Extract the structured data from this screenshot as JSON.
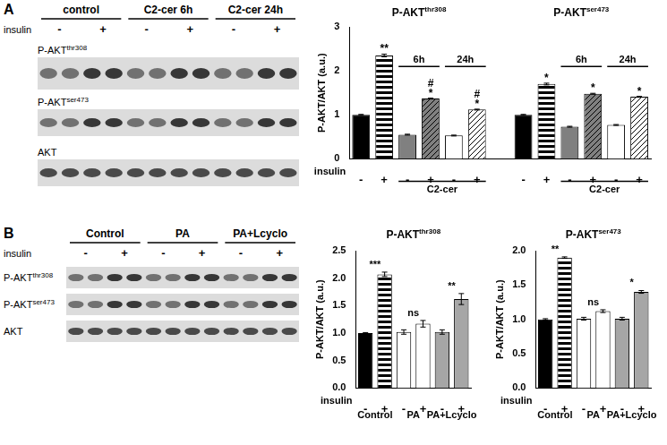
{
  "panels": [
    {
      "label": "A",
      "blot": {
        "conditions": [
          "control",
          "C2-cer 6h",
          "C2-cer 24h"
        ],
        "insulin_label": "insulin",
        "insulin": [
          "-",
          "+"
        ],
        "rows": [
          {
            "base": "P-AKT",
            "sup": "thr308"
          },
          {
            "base": "P-AKT",
            "sup": "ser473"
          },
          {
            "base": "AKT"
          }
        ]
      }
    },
    {
      "label": "B",
      "blot": {
        "conditions": [
          "Control",
          "PA",
          "PA+Lcyclo"
        ],
        "insulin_label": "insulin",
        "insulin": [
          "-",
          "+"
        ],
        "rows": [
          {
            "base": "P-AKT",
            "sup": "thr308"
          },
          {
            "base": "P-AKT",
            "sup": "ser473"
          },
          {
            "base": "AKT"
          }
        ]
      }
    }
  ],
  "chart_data": [
    {
      "type": "bar",
      "y_label": "P-AKT/AKT (a.u.)",
      "x_label": "insulin",
      "categories": [
        "-",
        "+",
        "-",
        "+",
        "-",
        "+",
        null,
        "-",
        "+",
        "-",
        "+",
        "-",
        "+"
      ],
      "values": [
        1,
        2.35,
        0.55,
        1.37,
        0.53,
        1.12,
        null,
        1,
        1.7,
        0.73,
        1.48,
        0.77,
        1.41
      ],
      "errors": [
        0.01,
        0.03,
        0.01,
        0.01,
        0.01,
        0.01,
        null,
        0.01,
        0.02,
        0.01,
        0.01,
        0.01,
        0.01
      ],
      "colors": [
        "#000000",
        "#000000",
        "#808080",
        "#808080",
        "#ffffff",
        "#ffffff",
        null,
        "#000000",
        "#000000",
        "#808080",
        "#808080",
        "#ffffff",
        "#ffffff"
      ],
      "significance": [
        null,
        [
          "**"
        ],
        null,
        [
          "#",
          "*"
        ],
        null,
        [
          "#",
          "*"
        ],
        null,
        null,
        [
          "*"
        ],
        null,
        [
          "*"
        ],
        null,
        [
          "*"
        ]
      ],
      "group_titles": [
        {
          "text": {
            "base": "P-AKT",
            "sup": "thr308"
          },
          "from": 0,
          "to": 5
        },
        {
          "text": {
            "base": "P-AKT",
            "sup": "ser473"
          },
          "from": 7,
          "to": 12
        }
      ],
      "brackets": [
        {
          "label": "6h",
          "from": 2,
          "to": 3
        },
        {
          "label": "24h",
          "from": 4,
          "to": 5
        },
        {
          "label": "6h",
          "from": 9,
          "to": 10
        },
        {
          "label": "24h",
          "from": 11,
          "to": 12
        }
      ],
      "groups": [
        {
          "label": "C2-cer",
          "from": 2,
          "to": 5
        },
        {
          "label": "C2-cer",
          "from": 9,
          "to": 12
        }
      ],
      "ylim": [
        0,
        3
      ],
      "yticks": [
        0,
        1,
        2,
        3
      ],
      "grid": false
    },
    {
      "type": "bar",
      "title": {
        "base": "P-AKT",
        "sup": "thr308"
      },
      "y_label": "P-AKT/AKT (a.u.)",
      "x_label": "insulin",
      "categories": [
        "-",
        "+",
        "-",
        "+",
        "-",
        "+"
      ],
      "values": [
        1,
        2.07,
        1.02,
        1.17,
        1.02,
        1.62
      ],
      "errors": [
        0.01,
        0.04,
        0.04,
        0.06,
        0.04,
        0.1
      ],
      "colors": [
        "#000000",
        "#000000",
        "#ffffff",
        "#ffffff",
        "#a6a6a6",
        "#a6a6a6"
      ],
      "comparisons": [
        {
          "from": 0,
          "to": 1,
          "label": "***"
        },
        {
          "from": 2,
          "to": 3,
          "label": "ns"
        },
        {
          "from": 4,
          "to": 5,
          "label": "**"
        }
      ],
      "groups": [
        {
          "label": "Control",
          "from": 0,
          "to": 1
        },
        {
          "label": "PA",
          "from": 2,
          "to": 3
        },
        {
          "label": "PA+Lcyclo",
          "from": 4,
          "to": 5
        }
      ],
      "ylim": [
        0,
        2.5
      ],
      "yticks": [
        {
          "value": 0,
          "label": "0.0"
        },
        0.5,
        {
          "value": 1,
          "label": "1.0"
        },
        1.5,
        {
          "value": 2,
          "label": "2.0"
        },
        2.5
      ],
      "grid": false
    },
    {
      "type": "bar",
      "title": {
        "base": "P-AKT",
        "sup": "ser473"
      },
      "y_label": "P-AKT/AKT (a.u.)",
      "x_label": "insulin",
      "categories": [
        "-",
        "+",
        "-",
        "+",
        "-",
        "+"
      ],
      "values": [
        1,
        1.9,
        1.01,
        1.12,
        1.01,
        1.4
      ],
      "errors": [
        0.01,
        0.01,
        0.02,
        0.02,
        0.02,
        0.02
      ],
      "colors": [
        "#000000",
        "#000000",
        "#ffffff",
        "#ffffff",
        "#a6a6a6",
        "#a6a6a6"
      ],
      "comparisons": [
        {
          "from": 0,
          "to": 1,
          "label": "**"
        },
        {
          "from": 2,
          "to": 3,
          "label": "ns"
        },
        {
          "from": 4,
          "to": 5,
          "label": "*"
        }
      ],
      "groups": [
        {
          "label": "Control",
          "from": 0,
          "to": 1
        },
        {
          "label": "PA",
          "from": 2,
          "to": 3
        },
        {
          "label": "PA+Lcyclo",
          "from": 4,
          "to": 5
        }
      ],
      "ylim": [
        0,
        2
      ],
      "yticks": [
        {
          "value": 0,
          "label": "0.0"
        },
        0.5,
        {
          "value": 1,
          "label": "1.0"
        },
        1.5,
        {
          "value": 2,
          "label": "2.0"
        }
      ],
      "grid": false
    }
  ]
}
